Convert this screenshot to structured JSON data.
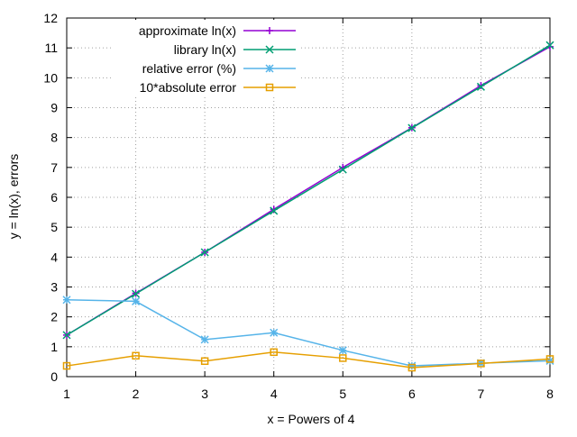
{
  "chart_data": {
    "type": "line",
    "xlabel": "x = Powers of 4",
    "ylabel": "y = ln(x), errors",
    "xlim": [
      1,
      8
    ],
    "ylim": [
      0,
      12
    ],
    "xticks": [
      1,
      2,
      3,
      4,
      5,
      6,
      7,
      8
    ],
    "yticks": [
      0,
      1,
      2,
      3,
      4,
      5,
      6,
      7,
      8,
      9,
      10,
      11,
      12
    ],
    "grid": true,
    "legend_position": "top-left",
    "x": [
      1,
      2,
      3,
      4,
      5,
      6,
      7,
      8
    ],
    "series": [
      {
        "name": "approximate ln(x)",
        "color": "#9400d3",
        "marker": "plus",
        "values": [
          1.39,
          2.79,
          4.16,
          5.6,
          7.0,
          8.33,
          9.74,
          11.04
        ]
      },
      {
        "name": "library ln(x)",
        "color": "#009e73",
        "marker": "cross",
        "values": [
          1.39,
          2.77,
          4.16,
          5.55,
          6.93,
          8.32,
          9.7,
          11.09
        ]
      },
      {
        "name": "relative error (%)",
        "color": "#56b4e9",
        "marker": "star",
        "values": [
          2.57,
          2.52,
          1.24,
          1.47,
          0.88,
          0.36,
          0.45,
          0.53
        ]
      },
      {
        "name": "10*absolute error",
        "color": "#e69f00",
        "marker": "square",
        "values": [
          0.36,
          0.7,
          0.52,
          0.82,
          0.62,
          0.3,
          0.44,
          0.59
        ]
      }
    ]
  }
}
